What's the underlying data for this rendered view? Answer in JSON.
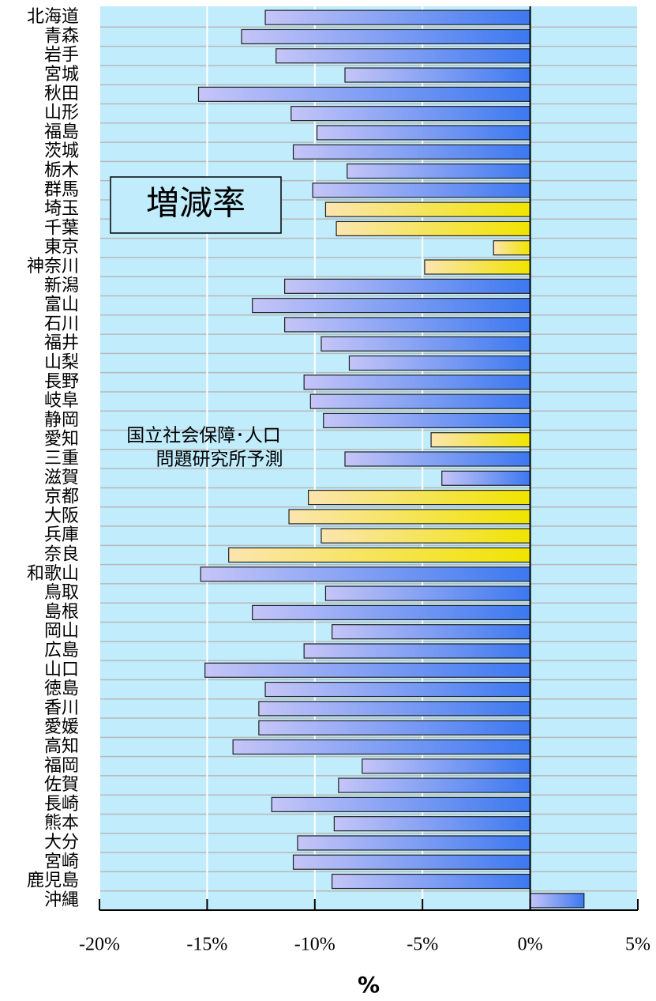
{
  "chart_data": {
    "type": "barh",
    "categories": [
      "北海道",
      "青森",
      "岩手",
      "宮城",
      "秋田",
      "山形",
      "福島",
      "茨城",
      "栃木",
      "群馬",
      "埼玉",
      "千葉",
      "東京",
      "神奈川",
      "新潟",
      "富山",
      "石川",
      "福井",
      "山梨",
      "長野",
      "岐阜",
      "静岡",
      "愛知",
      "三重",
      "滋賀",
      "京都",
      "大阪",
      "兵庫",
      "奈良",
      "和歌山",
      "鳥取",
      "島根",
      "岡山",
      "広島",
      "山口",
      "徳島",
      "香川",
      "愛媛",
      "高知",
      "福岡",
      "佐賀",
      "長崎",
      "熊本",
      "大分",
      "宮崎",
      "鹿児島",
      "沖縄"
    ],
    "values": [
      -12.3,
      -13.4,
      -11.8,
      -8.6,
      -15.4,
      -11.1,
      -9.9,
      -11.0,
      -8.5,
      -10.1,
      -9.5,
      -9.0,
      -1.7,
      -4.9,
      -11.4,
      -12.9,
      -11.4,
      -9.7,
      -8.4,
      -10.5,
      -10.2,
      -9.6,
      -4.6,
      -8.6,
      -4.1,
      -10.3,
      -11.2,
      -9.7,
      -14.0,
      -15.3,
      -9.5,
      -12.9,
      -9.2,
      -10.5,
      -15.1,
      -12.3,
      -12.6,
      -12.6,
      -13.8,
      -7.8,
      -8.9,
      -12.0,
      -9.1,
      -10.8,
      -11.0,
      -9.2,
      2.5
    ],
    "colors": [
      "#3c78f0",
      "#3c78f0",
      "#3c78f0",
      "#3c78f0",
      "#3c78f0",
      "#3c78f0",
      "#3c78f0",
      "#3c78f0",
      "#3c78f0",
      "#3c78f0",
      "#f0e400",
      "#f0e400",
      "#f0e400",
      "#f0e400",
      "#3c78f0",
      "#3c78f0",
      "#3c78f0",
      "#3c78f0",
      "#3c78f0",
      "#3c78f0",
      "#3c78f0",
      "#3c78f0",
      "#f0e400",
      "#3c78f0",
      "#3c78f0",
      "#f0e400",
      "#f0e400",
      "#f0e400",
      "#f0e400",
      "#3c78f0",
      "#3c78f0",
      "#3c78f0",
      "#3c78f0",
      "#3c78f0",
      "#3c78f0",
      "#3c78f0",
      "#3c78f0",
      "#3c78f0",
      "#3c78f0",
      "#3c78f0",
      "#3c78f0",
      "#3c78f0",
      "#3c78f0",
      "#3c78f0",
      "#3c78f0",
      "#3c78f0",
      "#3c78f0"
    ],
    "xlim": [
      -20,
      5
    ],
    "xticks": [
      {
        "value": -20,
        "label": "-20%"
      },
      {
        "value": -15,
        "label": "-15%"
      },
      {
        "value": -10,
        "label": "-10%"
      },
      {
        "value": -5,
        "label": "-5%"
      },
      {
        "value": 0,
        "label": "0%"
      },
      {
        "value": 5,
        "label": "5%"
      }
    ],
    "x_label": "%",
    "grid": true,
    "annotations": [
      "増減率",
      "国立社会保障･人口",
      "問題研究所予測"
    ]
  }
}
